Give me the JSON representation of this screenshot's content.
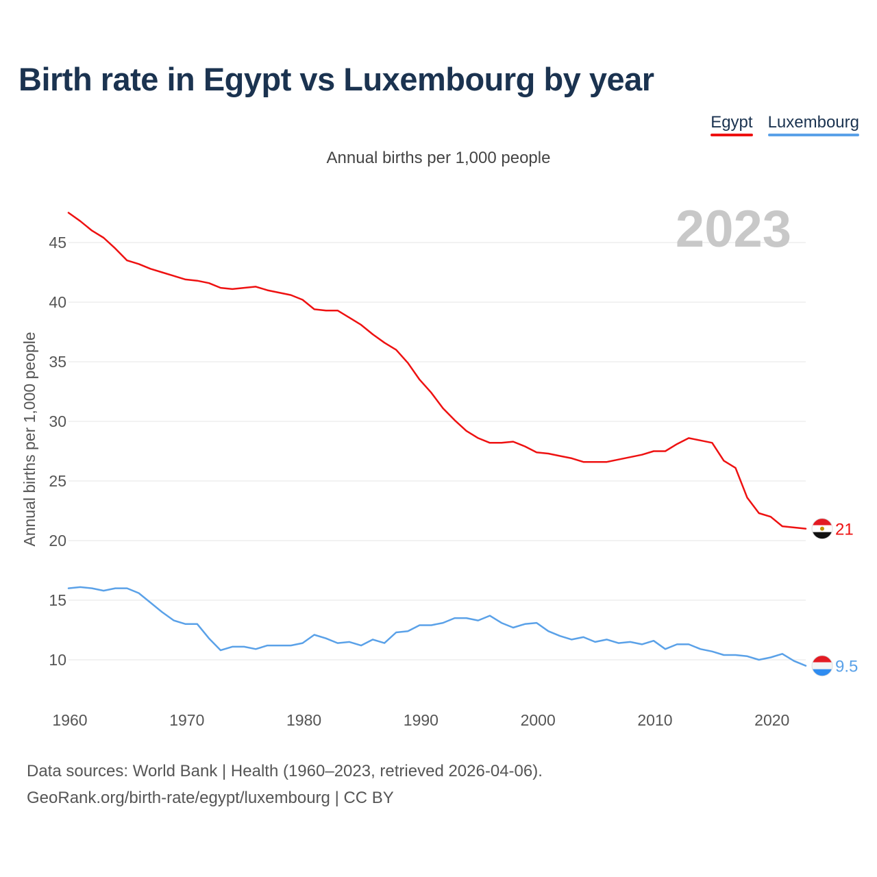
{
  "title": "Birth rate in Egypt vs Luxembourg by year",
  "subtitle": "Annual births per 1,000 people",
  "colors": {
    "egypt": "#ee1111",
    "luxembourg": "#5aa1e8",
    "grid": "#e6e6e6",
    "axis_text": "#555555",
    "year": "#c8c8c8"
  },
  "legend": [
    {
      "label": "Egypt",
      "color": "#ee1111"
    },
    {
      "label": "Luxembourg",
      "color": "#5aa1e8"
    }
  ],
  "chart_data": {
    "type": "line",
    "title": "Birth rate in Egypt vs Luxembourg by year",
    "xlabel": "",
    "ylabel": "Annual births per 1,000 people",
    "xlim": [
      1960,
      2023
    ],
    "ylim": [
      7,
      48
    ],
    "xticks": [
      1960,
      1970,
      1980,
      1990,
      2000,
      2010,
      2020
    ],
    "yticks": [
      10,
      15,
      20,
      25,
      30,
      35,
      40,
      45
    ],
    "year_label": "2023",
    "series": [
      {
        "name": "Egypt",
        "end_label": "21",
        "x": [
          1960,
          1961,
          1962,
          1963,
          1964,
          1965,
          1966,
          1967,
          1968,
          1969,
          1970,
          1971,
          1972,
          1973,
          1974,
          1975,
          1976,
          1977,
          1978,
          1979,
          1980,
          1981,
          1982,
          1983,
          1984,
          1985,
          1986,
          1987,
          1988,
          1989,
          1990,
          1991,
          1992,
          1993,
          1994,
          1995,
          1996,
          1997,
          1998,
          1999,
          2000,
          2001,
          2002,
          2003,
          2004,
          2005,
          2006,
          2007,
          2008,
          2009,
          2010,
          2011,
          2012,
          2013,
          2014,
          2015,
          2016,
          2017,
          2018,
          2019,
          2020,
          2021,
          2022,
          2023
        ],
        "values": [
          47.5,
          46.8,
          46.0,
          45.4,
          44.5,
          43.5,
          43.2,
          42.8,
          42.5,
          42.2,
          41.9,
          41.8,
          41.6,
          41.2,
          41.1,
          41.2,
          41.3,
          41.0,
          40.8,
          40.6,
          40.2,
          39.4,
          39.3,
          39.3,
          38.7,
          38.1,
          37.3,
          36.6,
          36.0,
          34.9,
          33.5,
          32.4,
          31.1,
          30.1,
          29.2,
          28.6,
          28.2,
          28.2,
          28.3,
          27.9,
          27.4,
          27.3,
          27.1,
          26.9,
          26.6,
          26.6,
          26.6,
          26.8,
          27.0,
          27.2,
          27.5,
          27.5,
          28.1,
          28.6,
          28.4,
          28.2,
          26.7,
          26.1,
          23.6,
          22.3,
          22.0,
          21.2,
          21.1,
          21.0
        ]
      },
      {
        "name": "Luxembourg",
        "end_label": "9.5",
        "x": [
          1960,
          1961,
          1962,
          1963,
          1964,
          1965,
          1966,
          1967,
          1968,
          1969,
          1970,
          1971,
          1972,
          1973,
          1974,
          1975,
          1976,
          1977,
          1978,
          1979,
          1980,
          1981,
          1982,
          1983,
          1984,
          1985,
          1986,
          1987,
          1988,
          1989,
          1990,
          1991,
          1992,
          1993,
          1994,
          1995,
          1996,
          1997,
          1998,
          1999,
          2000,
          2001,
          2002,
          2003,
          2004,
          2005,
          2006,
          2007,
          2008,
          2009,
          2010,
          2011,
          2012,
          2013,
          2014,
          2015,
          2016,
          2017,
          2018,
          2019,
          2020,
          2021,
          2022,
          2023
        ],
        "values": [
          16.0,
          16.1,
          16.0,
          15.8,
          16.0,
          16.0,
          15.6,
          14.8,
          14.0,
          13.3,
          13.0,
          13.0,
          11.8,
          10.8,
          11.1,
          11.1,
          10.9,
          11.2,
          11.2,
          11.2,
          11.4,
          12.1,
          11.8,
          11.4,
          11.5,
          11.2,
          11.7,
          11.4,
          12.3,
          12.4,
          12.9,
          12.9,
          13.1,
          13.5,
          13.5,
          13.3,
          13.7,
          13.1,
          12.7,
          13.0,
          13.1,
          12.4,
          12.0,
          11.7,
          11.9,
          11.5,
          11.7,
          11.4,
          11.5,
          11.3,
          11.6,
          10.9,
          11.3,
          11.3,
          10.9,
          10.7,
          10.4,
          10.4,
          10.3,
          10.0,
          10.2,
          10.5,
          9.9,
          9.5
        ]
      }
    ]
  },
  "source": {
    "line1": "Data sources: World Bank | Health (1960–2023, retrieved 2026-04-06).",
    "line2": "GeoRank.org/birth-rate/egypt/luxembourg | CC BY"
  }
}
